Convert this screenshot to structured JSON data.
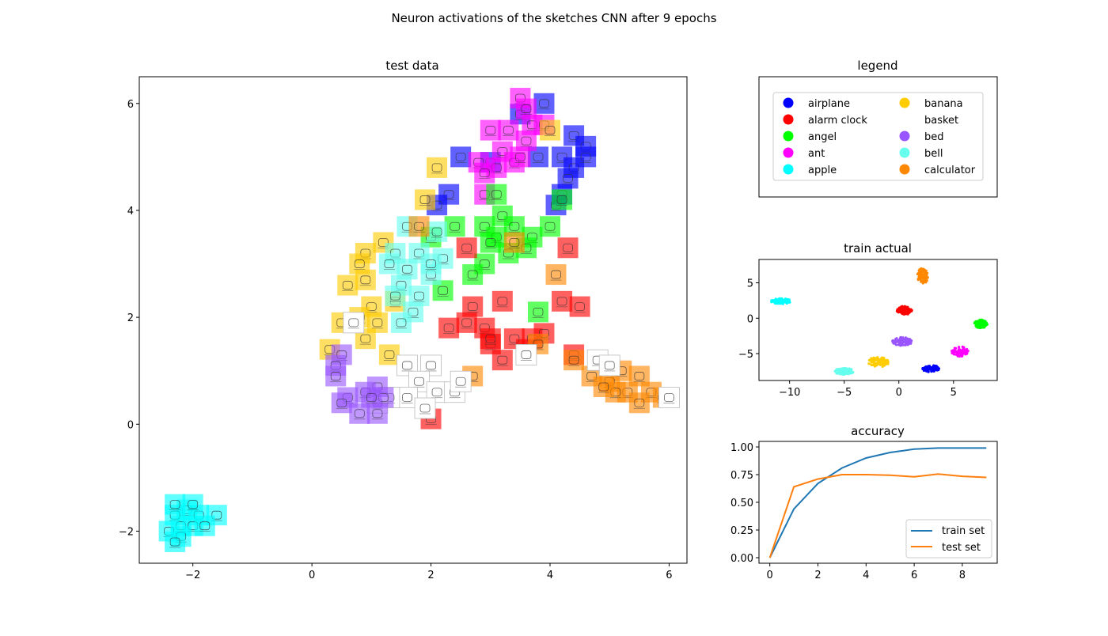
{
  "suptitle": "Neuron activations of the sketches CNN after 9 epochs",
  "colors": {
    "airplane": "#0000ff",
    "alarm clock": "#ff0000",
    "angel": "#00ff00",
    "ant": "#ff00ff",
    "apple": "#00ffff",
    "banana": "#ffcc00",
    "basket": "#ffffff",
    "bed": "#9955ff",
    "bell": "#66ffee",
    "calculator": "#ff8800"
  },
  "chart_data": [
    {
      "type": "scatter",
      "title": "test data",
      "description_kind": "image thumbnails placed at 2-D activation embedding",
      "xlim": [
        -2.9,
        6.3
      ],
      "ylim": [
        -2.6,
        6.5
      ],
      "xticks": [
        -2,
        0,
        2,
        4,
        6
      ],
      "yticks": [
        -2,
        0,
        2,
        4,
        6
      ],
      "grid": false,
      "clusters": [
        {
          "class": "apple",
          "points": [
            [
              -2.1,
              -1.6
            ],
            [
              -2.3,
              -1.7
            ],
            [
              -1.9,
              -1.7
            ],
            [
              -1.6,
              -1.7
            ],
            [
              -2.2,
              -1.9
            ],
            [
              -2.0,
              -1.9
            ],
            [
              -2.4,
              -2.0
            ],
            [
              -2.2,
              -2.1
            ],
            [
              -2.3,
              -1.5
            ],
            [
              -2.0,
              -1.5
            ],
            [
              -1.8,
              -1.9
            ],
            [
              -2.3,
              -2.2
            ]
          ]
        },
        {
          "class": "airplane",
          "points": [
            [
              3.9,
              6.0
            ],
            [
              3.5,
              5.8
            ],
            [
              4.4,
              5.4
            ],
            [
              4.6,
              5.2
            ],
            [
              2.5,
              5.0
            ],
            [
              3.0,
              4.9
            ],
            [
              3.8,
              5.0
            ],
            [
              4.2,
              5.0
            ],
            [
              4.4,
              4.8
            ],
            [
              2.3,
              4.3
            ],
            [
              4.2,
              4.3
            ],
            [
              4.1,
              4.1
            ],
            [
              4.6,
              5.0
            ],
            [
              4.3,
              4.6
            ],
            [
              2.1,
              4.1
            ]
          ]
        },
        {
          "class": "ant",
          "points": [
            [
              3.5,
              6.1
            ],
            [
              3.6,
              5.9
            ],
            [
              3.7,
              5.6
            ],
            [
              3.9,
              5.6
            ],
            [
              3.3,
              5.5
            ],
            [
              3.0,
              5.5
            ],
            [
              3.6,
              5.3
            ],
            [
              3.2,
              5.1
            ],
            [
              2.8,
              4.9
            ],
            [
              3.1,
              4.8
            ],
            [
              3.4,
              4.9
            ],
            [
              2.9,
              4.7
            ],
            [
              2.9,
              4.3
            ],
            [
              3.5,
              5.0
            ]
          ]
        },
        {
          "class": "banana",
          "points": [
            [
              2.1,
              4.8
            ],
            [
              4.0,
              5.5
            ],
            [
              1.9,
              4.2
            ],
            [
              1.2,
              3.4
            ],
            [
              0.9,
              3.2
            ],
            [
              0.8,
              3.0
            ],
            [
              0.9,
              2.7
            ],
            [
              0.6,
              2.6
            ],
            [
              1.0,
              2.2
            ],
            [
              0.8,
              2.0
            ],
            [
              1.1,
              1.9
            ],
            [
              0.5,
              1.9
            ],
            [
              0.9,
              1.6
            ],
            [
              0.3,
              1.4
            ],
            [
              1.3,
              1.3
            ],
            [
              1.4,
              2.3
            ]
          ]
        },
        {
          "class": "angel",
          "points": [
            [
              3.1,
              4.3
            ],
            [
              4.2,
              4.2
            ],
            [
              3.2,
              3.9
            ],
            [
              3.4,
              3.7
            ],
            [
              2.4,
              3.7
            ],
            [
              2.9,
              3.7
            ],
            [
              3.1,
              3.5
            ],
            [
              3.7,
              3.5
            ],
            [
              4.0,
              3.7
            ],
            [
              3.6,
              3.3
            ],
            [
              3.3,
              3.2
            ],
            [
              2.9,
              3.0
            ],
            [
              2.7,
              2.8
            ],
            [
              3.0,
              3.4
            ],
            [
              2.0,
              3.5
            ],
            [
              3.8,
              2.1
            ],
            [
              2.2,
              2.5
            ]
          ]
        },
        {
          "class": "bell",
          "points": [
            [
              1.6,
              3.7
            ],
            [
              2.1,
              3.6
            ],
            [
              1.4,
              3.2
            ],
            [
              1.8,
              3.2
            ],
            [
              2.2,
              3.1
            ],
            [
              1.3,
              3.0
            ],
            [
              1.6,
              2.9
            ],
            [
              2.0,
              2.8
            ],
            [
              1.5,
              2.6
            ],
            [
              1.8,
              2.4
            ],
            [
              1.4,
              2.4
            ],
            [
              1.7,
              2.1
            ],
            [
              1.5,
              1.9
            ],
            [
              2.0,
              3.0
            ]
          ]
        },
        {
          "class": "alarm clock",
          "points": [
            [
              2.6,
              3.3
            ],
            [
              4.3,
              3.3
            ],
            [
              2.7,
              2.2
            ],
            [
              2.6,
              1.9
            ],
            [
              3.2,
              2.3
            ],
            [
              2.9,
              1.8
            ],
            [
              3.4,
              1.6
            ],
            [
              3.0,
              1.5
            ],
            [
              3.7,
              1.6
            ],
            [
              3.9,
              1.7
            ],
            [
              4.5,
              2.2
            ],
            [
              4.2,
              2.3
            ],
            [
              3.6,
              1.4
            ],
            [
              3.2,
              1.2
            ],
            [
              2.3,
              1.8
            ],
            [
              2.0,
              0.1
            ],
            [
              4.4,
              1.3
            ],
            [
              3.0,
              1.6
            ]
          ]
        },
        {
          "class": "calculator",
          "points": [
            [
              1.8,
              3.7
            ],
            [
              3.4,
              3.4
            ],
            [
              4.1,
              2.8
            ],
            [
              3.8,
              1.5
            ],
            [
              2.7,
              0.9
            ],
            [
              4.4,
              1.2
            ],
            [
              4.7,
              0.9
            ],
            [
              5.2,
              1.0
            ],
            [
              5.0,
              0.8
            ],
            [
              5.5,
              0.9
            ],
            [
              5.3,
              0.6
            ],
            [
              5.7,
              0.6
            ],
            [
              5.5,
              0.4
            ],
            [
              5.9,
              0.5
            ],
            [
              5.1,
              0.6
            ],
            [
              4.9,
              0.7
            ]
          ]
        },
        {
          "class": "basket",
          "points": [
            [
              1.6,
              1.1
            ],
            [
              2.0,
              1.1
            ],
            [
              1.8,
              0.8
            ],
            [
              1.6,
              0.5
            ],
            [
              1.3,
              0.5
            ],
            [
              2.1,
              0.6
            ],
            [
              1.9,
              0.3
            ],
            [
              2.4,
              0.6
            ],
            [
              2.5,
              0.8
            ],
            [
              1.1,
              0.4
            ],
            [
              3.6,
              1.3
            ],
            [
              4.8,
              1.2
            ],
            [
              5.0,
              1.1
            ],
            [
              6.0,
              0.5
            ],
            [
              0.7,
              1.9
            ]
          ]
        },
        {
          "class": "bed",
          "points": [
            [
              0.5,
              1.3
            ],
            [
              0.4,
              1.1
            ],
            [
              0.4,
              0.9
            ],
            [
              1.1,
              0.7
            ],
            [
              1.2,
              0.5
            ],
            [
              0.9,
              0.6
            ],
            [
              1.0,
              0.5
            ],
            [
              0.6,
              0.5
            ],
            [
              0.8,
              0.2
            ],
            [
              1.1,
              0.2
            ],
            [
              0.5,
              0.4
            ]
          ]
        }
      ]
    },
    {
      "type": "legend",
      "title": "legend",
      "entries": [
        "airplane",
        "alarm clock",
        "angel",
        "ant",
        "apple",
        "banana",
        "basket",
        "bed",
        "bell",
        "calculator"
      ]
    },
    {
      "type": "scatter",
      "title": "train actual",
      "xlim": [
        -12.8,
        9.0
      ],
      "ylim": [
        -8.8,
        8.3
      ],
      "xticks": [
        -10,
        -5,
        0,
        5
      ],
      "yticks": [
        -5,
        0,
        5
      ],
      "grid": false,
      "clusters": [
        {
          "class": "apple",
          "cx": -10.8,
          "cy": 2.4,
          "rx": 0.9,
          "ry": 0.4
        },
        {
          "class": "calculator",
          "cx": 2.2,
          "cy": 6.0,
          "rx": 0.5,
          "ry": 1.1
        },
        {
          "class": "alarm clock",
          "cx": 0.5,
          "cy": 1.1,
          "rx": 0.7,
          "ry": 0.6
        },
        {
          "class": "angel",
          "cx": 7.5,
          "cy": -0.8,
          "rx": 0.6,
          "ry": 0.6
        },
        {
          "class": "bed",
          "cx": 0.3,
          "cy": -3.3,
          "rx": 0.9,
          "ry": 0.6
        },
        {
          "class": "ant",
          "cx": 5.6,
          "cy": -4.7,
          "rx": 0.8,
          "ry": 0.7
        },
        {
          "class": "banana",
          "cx": -1.9,
          "cy": -6.2,
          "rx": 1.0,
          "ry": 0.7
        },
        {
          "class": "airplane",
          "cx": 2.9,
          "cy": -7.1,
          "rx": 0.8,
          "ry": 0.5
        },
        {
          "class": "bell",
          "cx": -5.0,
          "cy": -7.5,
          "rx": 0.9,
          "ry": 0.45
        }
      ]
    },
    {
      "type": "line",
      "title": "accuracy",
      "xlim": [
        -0.45,
        9.45
      ],
      "ylim": [
        -0.05,
        1.05
      ],
      "xticks": [
        0,
        2,
        4,
        6,
        8
      ],
      "yticks": [
        "0.00",
        "0.25",
        "0.50",
        "0.75",
        "1.00"
      ],
      "legend_position": "lower right",
      "x": [
        0,
        1,
        2,
        3,
        4,
        5,
        6,
        7,
        8,
        9
      ],
      "series": [
        {
          "name": "train set",
          "color": "#1f77b4",
          "values": [
            0.0,
            0.44,
            0.67,
            0.81,
            0.9,
            0.95,
            0.98,
            0.99,
            0.99,
            0.99
          ]
        },
        {
          "name": "test set",
          "color": "#ff7f0e",
          "values": [
            0.0,
            0.64,
            0.71,
            0.75,
            0.75,
            0.745,
            0.73,
            0.755,
            0.735,
            0.725
          ]
        }
      ]
    }
  ]
}
